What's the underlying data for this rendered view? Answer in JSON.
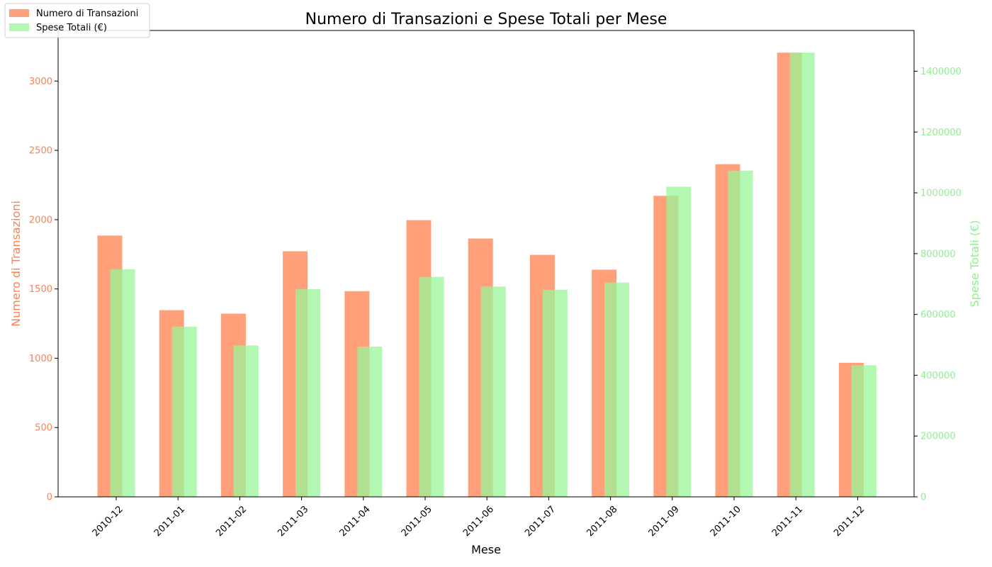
{
  "chart_data": {
    "type": "bar",
    "title": "Numero di Transazioni e Spese Totali per Mese",
    "xlabel": "Mese",
    "categories": [
      "2010-12",
      "2011-01",
      "2011-02",
      "2011-03",
      "2011-04",
      "2011-05",
      "2011-06",
      "2011-07",
      "2011-08",
      "2011-09",
      "2011-10",
      "2011-11",
      "2011-12"
    ],
    "series": [
      {
        "name": "Numero di Transazioni",
        "axis": "left",
        "color": "#FFA07A",
        "values": [
          1885,
          1347,
          1322,
          1772,
          1484,
          1996,
          1864,
          1746,
          1639,
          2172,
          2400,
          3205,
          967
        ]
      },
      {
        "name": "Spese Totali (€)",
        "axis": "right",
        "color": "#98F598",
        "values": [
          748500,
          560000,
          498000,
          683000,
          494000,
          723500,
          691500,
          681000,
          705000,
          1020000,
          1073000,
          1461000,
          433000
        ]
      }
    ],
    "y_left": {
      "label": "Numero di Transazioni",
      "color": "#FF7F50",
      "ylim": [
        0,
        3365
      ],
      "ticks": [
        0,
        500,
        1000,
        1500,
        2000,
        2500,
        3000
      ]
    },
    "y_right": {
      "label": "Spese Totali (€)",
      "color": "#90EE90",
      "ylim": [
        0,
        1534000
      ],
      "ticks": [
        0,
        200000,
        400000,
        600000,
        800000,
        1000000,
        1200000,
        1400000
      ]
    },
    "legend_position": "top-left"
  }
}
